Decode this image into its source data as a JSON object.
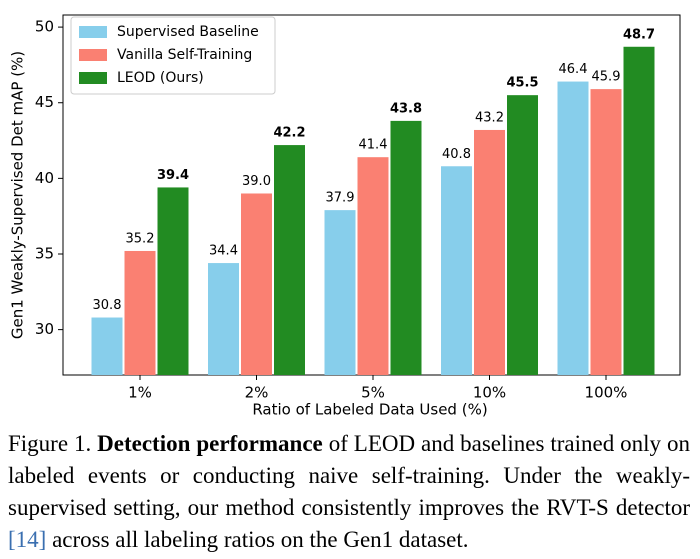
{
  "chart_data": {
    "type": "bar",
    "xlabel": "Ratio of Labeled Data Used (%)",
    "ylabel": "Gen1 Weakly-Supervised Det mAP (%)",
    "categories": [
      "1%",
      "2%",
      "5%",
      "10%",
      "100%"
    ],
    "series": [
      {
        "name": "Supervised Baseline",
        "color": "#87ceeb",
        "values": [
          30.8,
          34.4,
          37.9,
          40.8,
          46.4
        ],
        "value_labels": [
          "30.8",
          "34.4",
          "37.9",
          "40.8",
          "46.4"
        ]
      },
      {
        "name": "Vanilla Self-Training",
        "color": "#fa8072",
        "values": [
          35.2,
          39.0,
          41.4,
          43.2,
          45.9
        ],
        "value_labels": [
          "35.2",
          "39.0",
          "41.4",
          "43.2",
          "45.9"
        ]
      },
      {
        "name": "LEOD (Ours)",
        "color": "#228b22",
        "values": [
          39.4,
          42.2,
          43.8,
          45.5,
          48.7
        ],
        "value_labels": [
          "39.4",
          "42.2",
          "43.8",
          "45.5",
          "48.7"
        ],
        "bold_labels": true
      }
    ],
    "ylim": [
      27,
      50.8
    ],
    "yticks": [
      30,
      35,
      40,
      45,
      50
    ],
    "grid": false,
    "legend": "upper left"
  },
  "caption": {
    "label": "Figure 1. ",
    "emphasis": "Detection performance",
    "text": " of LEOD and baselines trained only on labeled events or conducting naive self-training. Under the weakly-supervised setting, our method consistently improves the RVT-S detector ",
    "ref": "[14]",
    "end": " across all labeling ratios on the Gen1 dataset."
  }
}
